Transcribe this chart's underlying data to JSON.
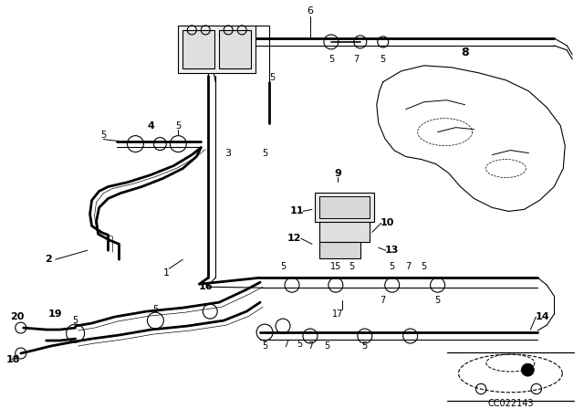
{
  "bg_color": "#ffffff",
  "line_color": "#000000",
  "diagram_code": "CC022143",
  "figsize": [
    6.4,
    4.48
  ],
  "dpi": 100
}
